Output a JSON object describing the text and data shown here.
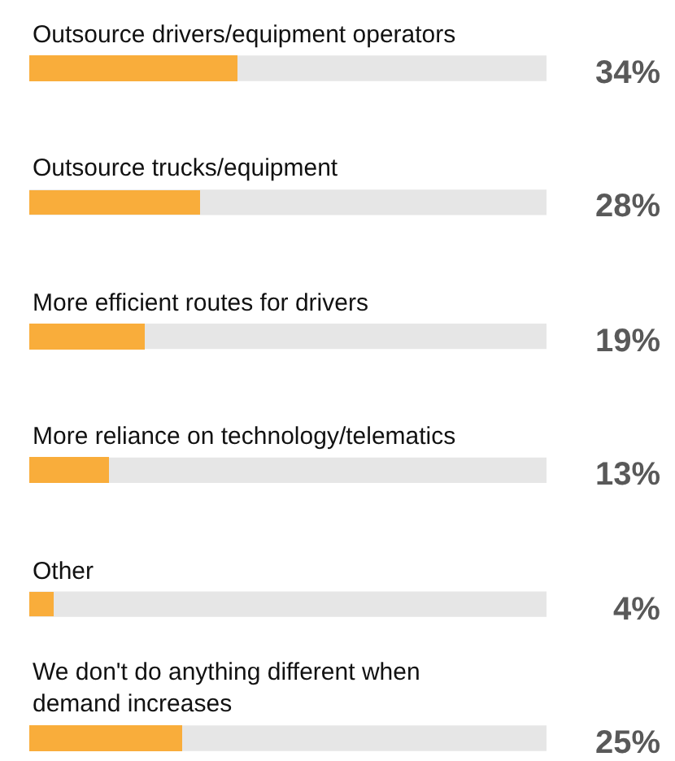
{
  "chart_data": {
    "type": "bar",
    "orientation": "horizontal",
    "categories": [
      "Outsource drivers/equipment operators",
      "Outsource trucks/equipment",
      "More efficient routes for drivers",
      "More reliance on technology/telematics",
      "Other",
      "We don't do anything different when demand increases"
    ],
    "values": [
      34,
      28,
      19,
      13,
      4,
      25
    ],
    "value_labels": [
      "34%",
      "28%",
      "19%",
      "13%",
      "4%",
      "25%"
    ],
    "color": "#f9ad3b",
    "xlim": [
      0,
      84.6
    ]
  }
}
